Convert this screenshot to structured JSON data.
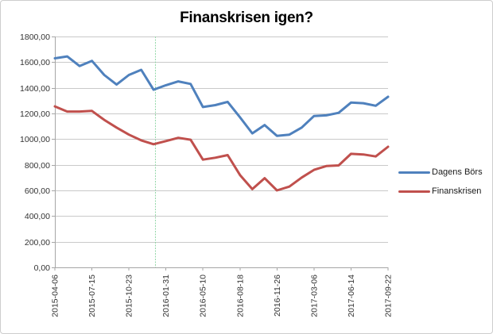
{
  "chart_data": {
    "type": "line",
    "title": "Finanskrisen igen?",
    "x_tick_labels": [
      "2015-04-06",
      "2015-07-15",
      "2015-10-23",
      "2016-01-31",
      "2016-05-10",
      "2016-08-18",
      "2016-11-26",
      "2017-03-06",
      "2017-06-14",
      "2017-09-22"
    ],
    "points_per_label": 3,
    "n_points": 28,
    "ylim": [
      0,
      1800
    ],
    "ytick_step": 200,
    "ytick_labels": [
      "0,00",
      "200,00",
      "400,00",
      "600,00",
      "800,00",
      "1000,00",
      "1200,00",
      "1400,00",
      "1600,00",
      "1800,00"
    ],
    "grid": "horizontal",
    "legend_position": "right",
    "series": [
      {
        "name": "Dagens Börs",
        "color": "#4F81BD",
        "values": [
          1630,
          1645,
          1570,
          1610,
          1500,
          1425,
          1500,
          1540,
          1385,
          1420,
          1450,
          1430,
          1250,
          1265,
          1290,
          1170,
          1045,
          1110,
          1025,
          1035,
          1090,
          1180,
          1185,
          1205,
          1285,
          1280,
          1260,
          1330
        ]
      },
      {
        "name": "Finanskrisen",
        "color": "#C0504D",
        "values": [
          1255,
          1215,
          1215,
          1220,
          1150,
          1090,
          1035,
          990,
          960,
          985,
          1010,
          995,
          840,
          855,
          875,
          720,
          610,
          695,
          600,
          630,
          700,
          760,
          790,
          795,
          885,
          880,
          865,
          940
        ]
      }
    ],
    "marker_line": {
      "color": "#93D8A8",
      "style": "dashed",
      "at_point_index": 8.15
    }
  },
  "colors": {
    "gridline": "#C9C9C9",
    "axis": "#A6A6A6",
    "title_text": "#000000",
    "tick_text": "#333333",
    "frame_border": "#CDCDCD",
    "background": "#FFFFFF"
  }
}
